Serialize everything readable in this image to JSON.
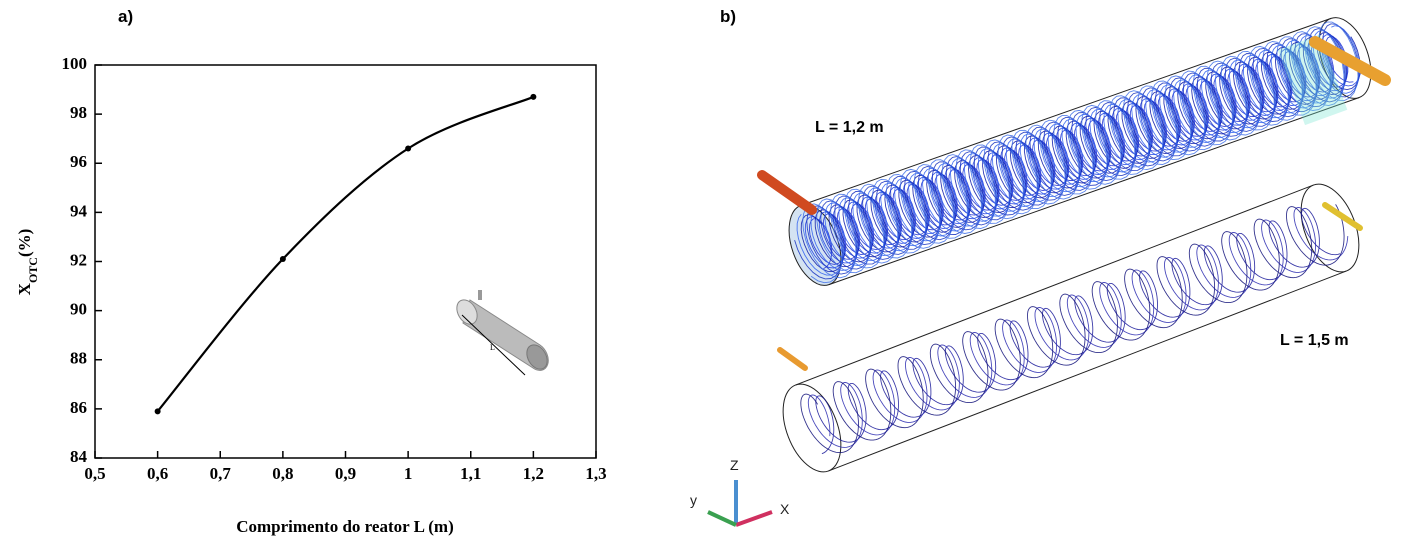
{
  "chart_data": {
    "type": "line",
    "panel_label": "a)",
    "xlabel": "Comprimento do reator L (m)",
    "ylabel": {
      "symbol": "X",
      "subscript": "OTC",
      "unit": "(%)"
    },
    "x": [
      0.6,
      0.8,
      1,
      1.2
    ],
    "series": [
      {
        "color": "#000000",
        "values": [
          85.9,
          92.1,
          96.6,
          98.7
        ]
      }
    ],
    "xlim": [
      0.5,
      1.3
    ],
    "xticks": [
      {
        "value": 0.5,
        "label": "0,5"
      },
      {
        "value": 0.6,
        "label": "0,6"
      },
      {
        "value": 0.7,
        "label": "0,7"
      },
      {
        "value": 0.8,
        "label": "0,8"
      },
      {
        "value": 0.9,
        "label": "0,9"
      },
      1,
      {
        "value": 1.1,
        "label": "1,1"
      },
      {
        "value": 1.2,
        "label": "1,2"
      },
      {
        "value": 1.3,
        "label": "1,3"
      }
    ],
    "ylim": [
      84,
      100
    ],
    "yticks": [
      84,
      86,
      88,
      90,
      92,
      94,
      96,
      98,
      100
    ],
    "smooth": true,
    "markers": true
  },
  "figure_b": {
    "panel_label": "b)",
    "annotations": [
      "L = 1,2 m",
      "L = 1,5 m"
    ],
    "axis_labels": [
      "Z",
      "y",
      "X"
    ]
  }
}
